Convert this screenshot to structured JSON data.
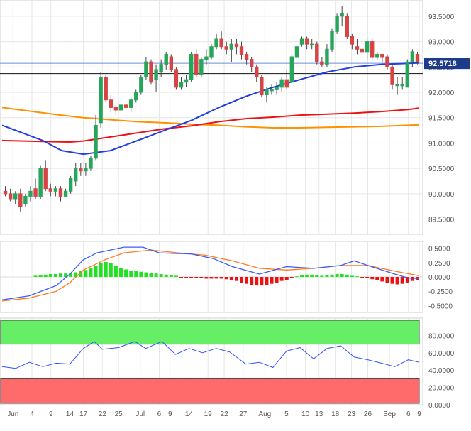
{
  "chart_data": [
    {
      "type": "candlestick",
      "panel": "price",
      "yticks": [
        "93.5000",
        "93.0000",
        "92.5000",
        "92.0000",
        "91.5000",
        "91.0000",
        "90.5000",
        "90.0000",
        "89.5000"
      ],
      "ytick_values": [
        93.5,
        93.0,
        92.5,
        92.0,
        91.5,
        91.0,
        90.5,
        90.0,
        89.5
      ],
      "ylim": [
        89.2,
        93.82
      ],
      "last_price": "92.5718",
      "last_price_value": 92.5718,
      "horizontal_line": 92.37,
      "candles": [
        [
          90.05,
          90.15,
          89.95,
          90.0
        ],
        [
          90.0,
          90.1,
          89.85,
          89.9
        ],
        [
          89.9,
          90.05,
          89.8,
          90.0
        ],
        [
          90.0,
          90.1,
          89.65,
          89.75
        ],
        [
          89.8,
          90.0,
          89.75,
          89.95
        ],
        [
          89.95,
          90.15,
          89.85,
          90.05
        ],
        [
          90.1,
          90.3,
          89.9,
          89.95
        ],
        [
          89.95,
          90.55,
          89.9,
          90.5
        ],
        [
          90.5,
          90.65,
          90.05,
          90.1
        ],
        [
          90.1,
          90.2,
          89.95,
          90.05
        ],
        [
          90.05,
          90.15,
          89.95,
          90.1
        ],
        [
          90.1,
          90.15,
          89.85,
          89.95
        ],
        [
          89.95,
          90.1,
          89.95,
          90.05
        ],
        [
          90.05,
          90.35,
          90.0,
          90.3
        ],
        [
          90.25,
          90.6,
          90.15,
          90.5
        ],
        [
          90.5,
          90.6,
          90.35,
          90.45
        ],
        [
          90.45,
          90.6,
          90.35,
          90.5
        ],
        [
          90.5,
          90.75,
          90.45,
          90.7
        ],
        [
          90.7,
          91.55,
          90.65,
          91.35
        ],
        [
          91.4,
          92.4,
          91.3,
          92.3
        ],
        [
          92.3,
          92.35,
          91.8,
          91.85
        ],
        [
          91.85,
          91.95,
          91.6,
          91.7
        ],
        [
          91.7,
          91.75,
          91.55,
          91.65
        ],
        [
          91.65,
          91.85,
          91.6,
          91.75
        ],
        [
          91.75,
          91.8,
          91.65,
          91.7
        ],
        [
          91.7,
          91.9,
          91.6,
          91.85
        ],
        [
          91.85,
          92.05,
          91.8,
          92.0
        ],
        [
          92.0,
          92.35,
          91.95,
          92.3
        ],
        [
          92.3,
          92.7,
          92.25,
          92.6
        ],
        [
          92.6,
          92.65,
          92.15,
          92.2
        ],
        [
          92.25,
          92.55,
          92.0,
          92.45
        ],
        [
          92.4,
          92.65,
          92.3,
          92.55
        ],
        [
          92.55,
          92.8,
          92.45,
          92.75
        ],
        [
          92.7,
          92.75,
          92.4,
          92.45
        ],
        [
          92.45,
          92.5,
          92.05,
          92.1
        ],
        [
          92.1,
          92.3,
          92.05,
          92.2
        ],
        [
          92.2,
          92.35,
          92.1,
          92.25
        ],
        [
          92.25,
          92.8,
          92.2,
          92.75
        ],
        [
          92.75,
          92.85,
          92.3,
          92.35
        ],
        [
          92.35,
          92.7,
          92.3,
          92.65
        ],
        [
          92.65,
          92.85,
          92.55,
          92.7
        ],
        [
          92.7,
          92.95,
          92.65,
          92.9
        ],
        [
          92.9,
          93.15,
          92.85,
          93.05
        ],
        [
          93.05,
          93.2,
          92.85,
          92.9
        ],
        [
          92.9,
          93.0,
          92.75,
          92.85
        ],
        [
          92.85,
          93.05,
          92.6,
          92.95
        ],
        [
          92.95,
          93.05,
          92.75,
          92.9
        ],
        [
          92.9,
          93.0,
          92.65,
          92.75
        ],
        [
          92.75,
          92.8,
          92.55,
          92.65
        ],
        [
          92.65,
          92.7,
          92.4,
          92.5
        ],
        [
          92.5,
          92.55,
          92.2,
          92.3
        ],
        [
          92.3,
          92.35,
          91.9,
          91.95
        ],
        [
          91.95,
          92.1,
          91.8,
          92.05
        ],
        [
          92.05,
          92.15,
          91.95,
          92.05
        ],
        [
          92.05,
          92.2,
          91.95,
          92.1
        ],
        [
          92.1,
          92.3,
          92.0,
          92.25
        ],
        [
          92.25,
          92.45,
          92.05,
          92.1
        ],
        [
          92.2,
          92.75,
          92.2,
          92.7
        ],
        [
          92.7,
          92.95,
          92.65,
          92.9
        ],
        [
          92.95,
          93.1,
          92.9,
          93.05
        ],
        [
          93.05,
          93.1,
          92.85,
          92.95
        ],
        [
          92.95,
          93.05,
          92.85,
          92.95
        ],
        [
          92.95,
          93.0,
          92.55,
          92.6
        ],
        [
          92.6,
          92.7,
          92.5,
          92.55
        ],
        [
          92.55,
          92.95,
          92.5,
          92.85
        ],
        [
          92.85,
          93.25,
          92.8,
          93.2
        ],
        [
          93.2,
          93.55,
          93.15,
          93.5
        ],
        [
          93.5,
          93.7,
          93.3,
          93.55
        ],
        [
          93.5,
          93.55,
          93.05,
          93.1
        ],
        [
          93.1,
          93.15,
          92.85,
          92.95
        ],
        [
          92.9,
          93.05,
          92.75,
          92.85
        ],
        [
          92.85,
          92.9,
          92.75,
          92.8
        ],
        [
          92.8,
          93.05,
          92.65,
          93.0
        ],
        [
          93.0,
          93.05,
          92.65,
          92.7
        ],
        [
          92.7,
          92.8,
          92.65,
          92.75
        ],
        [
          92.75,
          92.75,
          92.6,
          92.7
        ],
        [
          92.7,
          92.75,
          92.45,
          92.5
        ],
        [
          92.5,
          92.55,
          92.05,
          92.15
        ],
        [
          92.15,
          92.3,
          91.95,
          92.15
        ],
        [
          92.15,
          92.3,
          92.05,
          92.15
        ],
        [
          92.1,
          92.65,
          92.1,
          92.6
        ],
        [
          92.6,
          92.85,
          92.5,
          92.8
        ],
        [
          92.75,
          92.8,
          92.55,
          92.6
        ]
      ],
      "ma_blue": [
        [
          0,
          91.35
        ],
        [
          15,
          91.05
        ],
        [
          22,
          90.85
        ],
        [
          30,
          90.78
        ],
        [
          40,
          90.85
        ],
        [
          50,
          91.05
        ],
        [
          60,
          91.25
        ],
        [
          70,
          91.45
        ],
        [
          80,
          91.7
        ],
        [
          90,
          91.92
        ],
        [
          100,
          92.1
        ],
        [
          110,
          92.25
        ],
        [
          120,
          92.4
        ],
        [
          130,
          92.5
        ],
        [
          140,
          92.55
        ],
        [
          150,
          92.57
        ],
        [
          154,
          92.58
        ]
      ],
      "ma_red": [
        [
          0,
          91.05
        ],
        [
          15,
          91.03
        ],
        [
          25,
          91.02
        ],
        [
          30,
          91.04
        ],
        [
          40,
          91.12
        ],
        [
          50,
          91.2
        ],
        [
          60,
          91.28
        ],
        [
          70,
          91.34
        ],
        [
          80,
          91.42
        ],
        [
          90,
          91.48
        ],
        [
          100,
          91.51
        ],
        [
          110,
          91.55
        ],
        [
          120,
          91.57
        ],
        [
          130,
          91.59
        ],
        [
          140,
          91.62
        ],
        [
          150,
          91.66
        ],
        [
          154,
          91.69
        ]
      ],
      "ma_orange": [
        [
          0,
          91.7
        ],
        [
          10,
          91.63
        ],
        [
          20,
          91.56
        ],
        [
          30,
          91.5
        ],
        [
          40,
          91.46
        ],
        [
          50,
          91.42
        ],
        [
          60,
          91.4
        ],
        [
          70,
          91.37
        ],
        [
          80,
          91.35
        ],
        [
          90,
          91.32
        ],
        [
          100,
          91.3
        ],
        [
          110,
          91.3
        ],
        [
          120,
          91.31
        ],
        [
          130,
          91.32
        ],
        [
          140,
          91.33
        ],
        [
          150,
          91.35
        ],
        [
          154,
          91.36
        ]
      ]
    },
    {
      "type": "macd",
      "panel": "macd",
      "yticks": [
        "0.5000",
        "0.2500",
        "0.0000",
        "-0.2500",
        "-0.5000"
      ],
      "ytick_values": [
        0.5,
        0.25,
        0.0,
        -0.25,
        -0.5
      ],
      "ylim": [
        -0.62,
        0.62
      ],
      "histogram": [
        0,
        0,
        0,
        0,
        0,
        0,
        0.02,
        0.03,
        0.04,
        0.05,
        0.05,
        0.06,
        0.06,
        0.07,
        0.08,
        0.1,
        0.12,
        0.16,
        0.2,
        0.24,
        0.26,
        0.24,
        0.2,
        0.16,
        0.13,
        0.11,
        0.1,
        0.09,
        0.08,
        0.07,
        0.06,
        0.05,
        0.04,
        0.03,
        0.02,
        -0.01,
        -0.02,
        -0.02,
        -0.02,
        -0.02,
        -0.03,
        -0.03,
        -0.03,
        -0.03,
        -0.04,
        -0.05,
        -0.07,
        -0.1,
        -0.12,
        -0.14,
        -0.15,
        -0.15,
        -0.14,
        -0.12,
        -0.1,
        -0.07,
        -0.05,
        -0.02,
        0.01,
        0.03,
        0.04,
        0.04,
        0.03,
        0.02,
        0.03,
        0.04,
        0.05,
        0.05,
        0.04,
        0.02,
        0.01,
        -0.01,
        -0.02,
        -0.04,
        -0.06,
        -0.08,
        -0.1,
        -0.12,
        -0.13,
        -0.12,
        -0.1,
        -0.07,
        -0.05
      ],
      "macd_line": [
        [
          0,
          -0.4
        ],
        [
          10,
          -0.33
        ],
        [
          20,
          -0.15
        ],
        [
          25,
          0.05
        ],
        [
          30,
          0.3
        ],
        [
          35,
          0.42
        ],
        [
          40,
          0.47
        ],
        [
          45,
          0.52
        ],
        [
          52,
          0.52
        ],
        [
          58,
          0.42
        ],
        [
          70,
          0.4
        ],
        [
          78,
          0.32
        ],
        [
          85,
          0.18
        ],
        [
          95,
          0.05
        ],
        [
          105,
          0.18
        ],
        [
          115,
          0.15
        ],
        [
          125,
          0.2
        ],
        [
          130,
          0.28
        ],
        [
          135,
          0.2
        ],
        [
          145,
          0.05
        ],
        [
          150,
          -0.02
        ],
        [
          154,
          -0.03
        ]
      ],
      "signal_line": [
        [
          0,
          -0.42
        ],
        [
          10,
          -0.37
        ],
        [
          20,
          -0.25
        ],
        [
          25,
          -0.1
        ],
        [
          30,
          0.12
        ],
        [
          38,
          0.3
        ],
        [
          45,
          0.42
        ],
        [
          55,
          0.47
        ],
        [
          65,
          0.42
        ],
        [
          75,
          0.38
        ],
        [
          85,
          0.28
        ],
        [
          95,
          0.15
        ],
        [
          105,
          0.12
        ],
        [
          115,
          0.15
        ],
        [
          125,
          0.2
        ],
        [
          135,
          0.2
        ],
        [
          145,
          0.1
        ],
        [
          154,
          0.02
        ]
      ]
    },
    {
      "type": "rsi",
      "panel": "rsi",
      "yticks": [
        "80.0000",
        "60.0000",
        "40.0000",
        "20.0000",
        "0.0000"
      ],
      "ytick_values": [
        80,
        60,
        40,
        20,
        0
      ],
      "ylim": [
        0,
        100
      ],
      "overbought": 70,
      "oversold": 30,
      "line": [
        [
          0,
          44
        ],
        [
          5,
          42
        ],
        [
          10,
          49
        ],
        [
          15,
          44
        ],
        [
          20,
          48
        ],
        [
          25,
          47
        ],
        [
          30,
          65
        ],
        [
          34,
          73
        ],
        [
          37,
          64
        ],
        [
          43,
          66
        ],
        [
          49,
          73
        ],
        [
          53,
          65
        ],
        [
          59,
          73
        ],
        [
          64,
          58
        ],
        [
          69,
          65
        ],
        [
          74,
          60
        ],
        [
          79,
          65
        ],
        [
          84,
          61
        ],
        [
          90,
          47
        ],
        [
          95,
          49
        ],
        [
          100,
          43
        ],
        [
          105,
          62
        ],
        [
          110,
          66
        ],
        [
          115,
          53
        ],
        [
          120,
          65
        ],
        [
          125,
          68
        ],
        [
          130,
          55
        ],
        [
          135,
          52
        ],
        [
          140,
          48
        ],
        [
          145,
          44
        ],
        [
          150,
          52
        ],
        [
          154,
          49
        ]
      ]
    }
  ],
  "x_axis": {
    "labels": [
      "Jun",
      "4",
      "9",
      "14",
      "17",
      "22",
      "25",
      "Jul",
      "6",
      "9",
      "14",
      "19",
      "22",
      "27",
      "Aug",
      "5",
      "10",
      "13",
      "18",
      "23",
      "26",
      "Sep",
      "6",
      "9"
    ],
    "positions": [
      4,
      11,
      18,
      25,
      30,
      37,
      43,
      51,
      58,
      62,
      69,
      76,
      82,
      89,
      97,
      105,
      112,
      117,
      123,
      129,
      135,
      143,
      150,
      154
    ]
  },
  "colors": {
    "up": "#26a65b",
    "down": "#d64545",
    "ma_blue": "#1f3fe0",
    "ma_red": "#ee1111",
    "ma_orange": "#ff9100",
    "hist_up": "#22e022",
    "hist_down": "#ee1111",
    "macd_line": "#3b5bff",
    "signal_line": "#ff7a1a",
    "rsi_line": "#3050ff",
    "overbought_zone": "#66ee66",
    "oversold_zone": "#ff6b6b",
    "grid": "#e6e6e6",
    "price_tag": "#1e3a8a"
  }
}
